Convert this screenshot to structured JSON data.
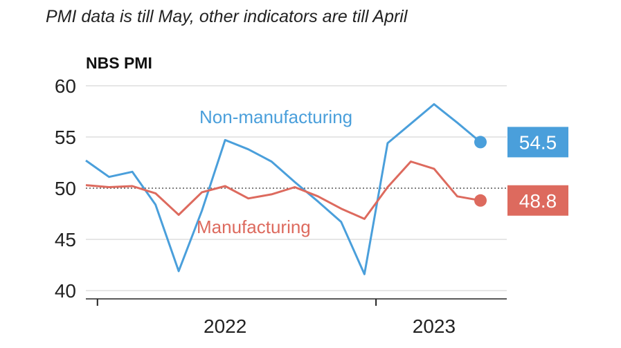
{
  "subtitle": "PMI data is till May, other indicators are till April",
  "colors": {
    "non_manufacturing": "#4a9fdb",
    "manufacturing": "#dd6a5e",
    "grid": "#dddddd",
    "reference": "#555555"
  },
  "chart_data": {
    "type": "line",
    "title": "",
    "ylabel": "NBS PMI",
    "xlabel": "",
    "ylim": [
      40,
      60
    ],
    "yticks": [
      "40",
      "45",
      "50",
      "55",
      "60"
    ],
    "xticks": [
      {
        "label": "2022",
        "x": "2022-06"
      },
      {
        "label": "2023",
        "x": "2023-03"
      }
    ],
    "year_boundaries": [
      "2022-01",
      "2023-01"
    ],
    "reference_line": 50,
    "grid": true,
    "x": [
      "2021-12",
      "2022-01",
      "2022-02",
      "2022-03",
      "2022-04",
      "2022-05",
      "2022-06",
      "2022-07",
      "2022-08",
      "2022-09",
      "2022-10",
      "2022-11",
      "2022-12",
      "2023-01",
      "2023-02",
      "2023-03",
      "2023-04",
      "2023-05"
    ],
    "series": [
      {
        "name": "Non-manufacturing",
        "key": "non_manufacturing",
        "values": [
          52.7,
          51.1,
          51.6,
          48.4,
          41.9,
          47.8,
          54.7,
          53.8,
          52.6,
          50.6,
          48.7,
          46.7,
          41.6,
          54.4,
          56.3,
          58.2,
          56.4,
          54.5
        ],
        "last_label": "54.5"
      },
      {
        "name": "Manufacturing",
        "key": "manufacturing",
        "values": [
          50.3,
          50.1,
          50.2,
          49.5,
          47.4,
          49.6,
          50.2,
          49.0,
          49.4,
          50.1,
          49.2,
          48.0,
          47.0,
          50.1,
          52.6,
          51.9,
          49.2,
          48.8
        ],
        "last_label": "48.8"
      }
    ]
  }
}
